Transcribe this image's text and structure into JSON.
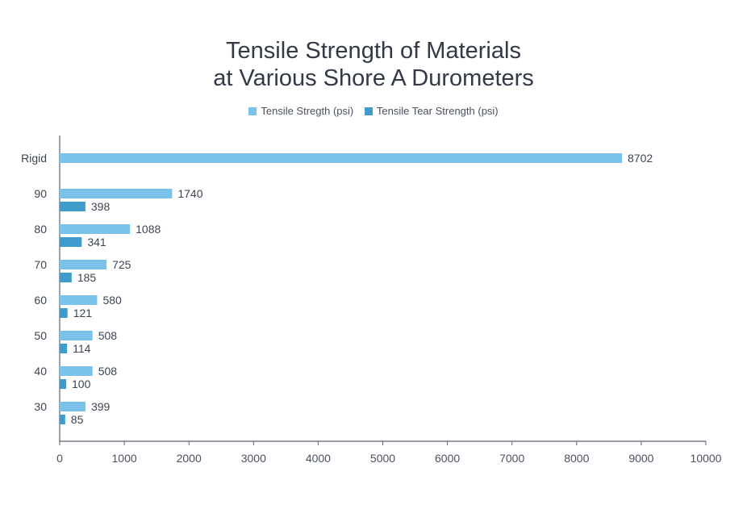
{
  "chart_data": {
    "type": "bar",
    "orientation": "horizontal",
    "title": [
      "Tensile Strength of Materials",
      "at Various Shore A Durometers"
    ],
    "categories": [
      "Rigid",
      "90",
      "80",
      "70",
      "60",
      "50",
      "40",
      "30"
    ],
    "series": [
      {
        "name": "Tensile Stregth (psi)",
        "color": "#79c2ea",
        "values": [
          8702,
          1740,
          1088,
          725,
          580,
          508,
          508,
          399
        ]
      },
      {
        "name": "Tensile Tear Strength (psi)",
        "color": "#3f9ccc",
        "values": [
          null,
          398,
          341,
          185,
          121,
          114,
          100,
          85
        ]
      }
    ],
    "xlim": [
      0,
      10000
    ],
    "xticks": [
      "0",
      "1000",
      "2000",
      "3000",
      "4000",
      "5000",
      "6000",
      "7000",
      "8000",
      "9000",
      "10000"
    ],
    "grid": false,
    "legend": "top-center"
  }
}
